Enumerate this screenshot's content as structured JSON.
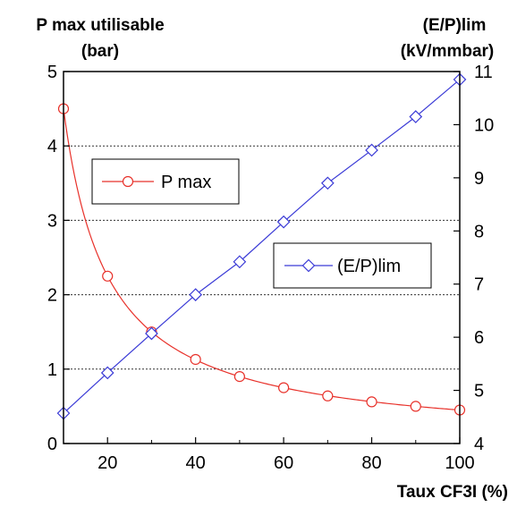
{
  "chart_data": {
    "type": "line",
    "xlabel": "Taux CF3I (%)",
    "ylabel_left": [
      "P max utilisable",
      "(bar)"
    ],
    "ylabel_right": [
      "(E/P)lim",
      "(kV/mmbar)"
    ],
    "xlim": [
      10,
      100
    ],
    "ylim_left": [
      0,
      5
    ],
    "ylim_right": [
      4,
      11
    ],
    "x_ticks": [
      20,
      40,
      60,
      80,
      100
    ],
    "y_left_ticks": [
      0,
      1,
      2,
      3,
      4,
      5
    ],
    "y_right_ticks": [
      4,
      5,
      6,
      7,
      8,
      9,
      10,
      11
    ],
    "grid": "horizontal dotted lines at left-axis 1, 2, 3, 4",
    "series": [
      {
        "name": "P max",
        "axis": "left",
        "color": "#e8312a",
        "marker": "circle",
        "x": [
          10,
          20,
          30,
          40,
          50,
          60,
          70,
          80,
          90,
          100
        ],
        "y": [
          4.5,
          2.25,
          1.5,
          1.13,
          0.9,
          0.75,
          0.64,
          0.56,
          0.5,
          0.45
        ]
      },
      {
        "name": "(E/P)lim",
        "axis": "right",
        "color": "#3a3ad6",
        "marker": "diamond",
        "x": [
          10,
          20,
          30,
          40,
          50,
          60,
          70,
          80,
          90,
          100
        ],
        "y": [
          4.57,
          5.33,
          6.07,
          6.8,
          7.42,
          8.17,
          8.9,
          9.52,
          10.15,
          10.85
        ]
      }
    ]
  }
}
